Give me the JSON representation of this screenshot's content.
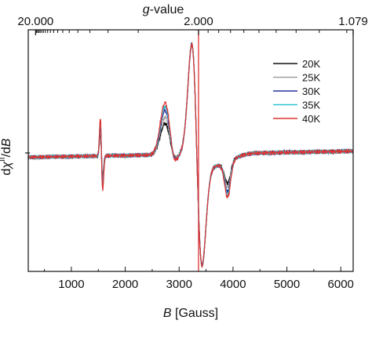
{
  "chart_data": {
    "type": "line",
    "title": "",
    "xlabel_italic": "B",
    "xlabel_rest": " [Gauss]",
    "ylabel_d1": "d",
    "ylabel_chi": "χ",
    "ylabel_sup": "II",
    "ylabel_slash": "/d",
    "ylabel_b": "B",
    "top_axis_label_italic": "g",
    "top_axis_label_rest": "-value",
    "top_ticks": [
      {
        "label": "20.000",
        "gauss": 336
      },
      {
        "label": "2.000",
        "gauss": 3360
      },
      {
        "label": "1.079",
        "gauss": 6230
      }
    ],
    "xlim": [
      200,
      6230
    ],
    "ylim": [
      -1,
      1
    ],
    "xticks": [
      1000,
      2000,
      3000,
      4000,
      5000,
      6000
    ],
    "y_ticks_labeled": false,
    "reference_line_gauss": 3360,
    "reference_line_color": "#e03030",
    "legend_position": "top-right",
    "series": [
      {
        "name": "20K",
        "color": "#111111",
        "amp": 0.6
      },
      {
        "name": "25K",
        "color": "#a0a0a0",
        "amp": 0.72
      },
      {
        "name": "30K",
        "color": "#28309a",
        "amp": 0.85
      },
      {
        "name": "35K",
        "color": "#2ec5d2",
        "amp": 0.93
      },
      {
        "name": "40K",
        "color": "#e03030",
        "amp": 1.0
      }
    ]
  }
}
